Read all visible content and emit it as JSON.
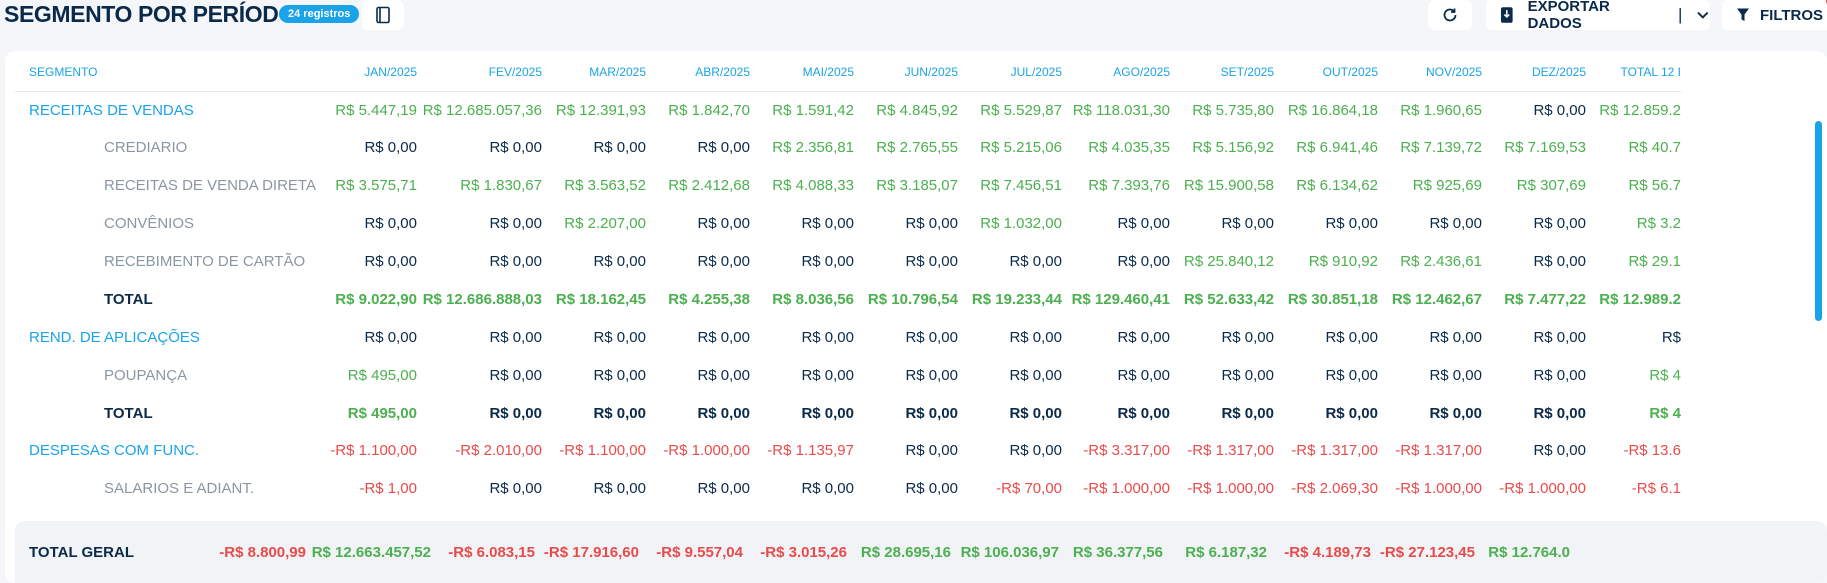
{
  "header": {
    "title": "SEGMENTO POR PERÍODO",
    "badge": "24 registros",
    "export_label": "EXPORTAR DADOS",
    "export_sep": "|",
    "filter_label": "FILTROS"
  },
  "table": {
    "columns": [
      "SEGMENTO",
      "JAN/2025",
      "FEV/2025",
      "MAR/2025",
      "ABR/2025",
      "MAI/2025",
      "JUN/2025",
      "JUL/2025",
      "AGO/2025",
      "SET/2025",
      "OUT/2025",
      "NOV/2025",
      "DEZ/2025",
      "TOTAL 12 I"
    ],
    "rows": [
      {
        "label": "RECEITAS DE VENDAS",
        "level": 0,
        "values": [
          "R$ 5.447,19",
          "R$ 12.685.057,36",
          "R$ 12.391,93",
          "R$ 1.842,70",
          "R$ 1.591,42",
          "R$ 4.845,92",
          "R$ 5.529,87",
          "R$ 118.031,30",
          "R$ 5.735,80",
          "R$ 16.864,18",
          "R$ 1.960,65",
          "R$ 0,00",
          "R$ 12.859.2"
        ]
      },
      {
        "label": "CREDIARIO",
        "level": 1,
        "values": [
          "R$ 0,00",
          "R$ 0,00",
          "R$ 0,00",
          "R$ 0,00",
          "R$ 2.356,81",
          "R$ 2.765,55",
          "R$ 5.215,06",
          "R$ 4.035,35",
          "R$ 5.156,92",
          "R$ 6.941,46",
          "R$ 7.139,72",
          "R$ 7.169,53",
          "R$ 40.7"
        ]
      },
      {
        "label": "RECEITAS DE VENDA DIRETA",
        "level": 1,
        "values": [
          "R$ 3.575,71",
          "R$ 1.830,67",
          "R$ 3.563,52",
          "R$ 2.412,68",
          "R$ 4.088,33",
          "R$ 3.185,07",
          "R$ 7.456,51",
          "R$ 7.393,76",
          "R$ 15.900,58",
          "R$ 6.134,62",
          "R$ 925,69",
          "R$ 307,69",
          "R$ 56.7"
        ]
      },
      {
        "label": "CONVÊNIOS",
        "level": 1,
        "values": [
          "R$ 0,00",
          "R$ 0,00",
          "R$ 2.207,00",
          "R$ 0,00",
          "R$ 0,00",
          "R$ 0,00",
          "R$ 1.032,00",
          "R$ 0,00",
          "R$ 0,00",
          "R$ 0,00",
          "R$ 0,00",
          "R$ 0,00",
          "R$ 3.2"
        ]
      },
      {
        "label": "RECEBIMENTO DE CARTÃO",
        "level": 1,
        "values": [
          "R$ 0,00",
          "R$ 0,00",
          "R$ 0,00",
          "R$ 0,00",
          "R$ 0,00",
          "R$ 0,00",
          "R$ 0,00",
          "R$ 0,00",
          "R$ 25.840,12",
          "R$ 910,92",
          "R$ 2.436,61",
          "R$ 0,00",
          "R$ 29.1"
        ]
      },
      {
        "label": "TOTAL",
        "level": 1,
        "total": true,
        "values": [
          "R$ 9.022,90",
          "R$ 12.686.888,03",
          "R$ 18.162,45",
          "R$ 4.255,38",
          "R$ 8.036,56",
          "R$ 10.796,54",
          "R$ 19.233,44",
          "R$ 129.460,41",
          "R$ 52.633,42",
          "R$ 30.851,18",
          "R$ 12.462,67",
          "R$ 7.477,22",
          "R$ 12.989.2"
        ]
      },
      {
        "label": "REND. DE APLICAÇÕES",
        "level": 0,
        "values": [
          "R$ 0,00",
          "R$ 0,00",
          "R$ 0,00",
          "R$ 0,00",
          "R$ 0,00",
          "R$ 0,00",
          "R$ 0,00",
          "R$ 0,00",
          "R$ 0,00",
          "R$ 0,00",
          "R$ 0,00",
          "R$ 0,00",
          "R$"
        ]
      },
      {
        "label": "POUPANÇA",
        "level": 1,
        "values": [
          "R$ 495,00",
          "R$ 0,00",
          "R$ 0,00",
          "R$ 0,00",
          "R$ 0,00",
          "R$ 0,00",
          "R$ 0,00",
          "R$ 0,00",
          "R$ 0,00",
          "R$ 0,00",
          "R$ 0,00",
          "R$ 0,00",
          "R$ 4"
        ]
      },
      {
        "label": "TOTAL",
        "level": 1,
        "total": true,
        "values": [
          "R$ 495,00",
          "R$ 0,00",
          "R$ 0,00",
          "R$ 0,00",
          "R$ 0,00",
          "R$ 0,00",
          "R$ 0,00",
          "R$ 0,00",
          "R$ 0,00",
          "R$ 0,00",
          "R$ 0,00",
          "R$ 0,00",
          "R$ 4"
        ]
      },
      {
        "label": "DESPESAS COM FUNC.",
        "level": 0,
        "values": [
          "-R$ 1.100,00",
          "-R$ 2.010,00",
          "-R$ 1.100,00",
          "-R$ 1.000,00",
          "-R$ 1.135,97",
          "R$ 0,00",
          "R$ 0,00",
          "-R$ 3.317,00",
          "-R$ 1.317,00",
          "-R$ 1.317,00",
          "-R$ 1.317,00",
          "R$ 0,00",
          "-R$ 13.6"
        ]
      },
      {
        "label": "SALARIOS E ADIANT.",
        "level": 1,
        "values": [
          "-R$ 1,00",
          "R$ 0,00",
          "R$ 0,00",
          "R$ 0,00",
          "R$ 0,00",
          "R$ 0,00",
          "-R$ 70,00",
          "-R$ 1.000,00",
          "-R$ 1.000,00",
          "-R$ 2.069,30",
          "-R$ 1.000,00",
          "-R$ 1.000,00",
          "-R$ 6.1"
        ]
      }
    ],
    "grand_total": {
      "label": "TOTAL GERAL",
      "values": [
        "-R$ 8.800,99",
        "R$ 12.663.457,52",
        "-R$ 6.083,15",
        "-R$ 17.916,60",
        "-R$ 9.557,04",
        "-R$ 3.015,26",
        "R$ 28.695,16",
        "R$ 106.036,97",
        "R$ 36.377,56",
        "R$ 6.187,32",
        "-R$ 4.189,73",
        "-R$ 27.123,45",
        "R$ 12.764.0"
      ]
    }
  },
  "colors": {
    "accent": "#1aa3e8",
    "positive": "#4caf50",
    "negative": "#e84b4b",
    "text": "#0b2a4a"
  }
}
